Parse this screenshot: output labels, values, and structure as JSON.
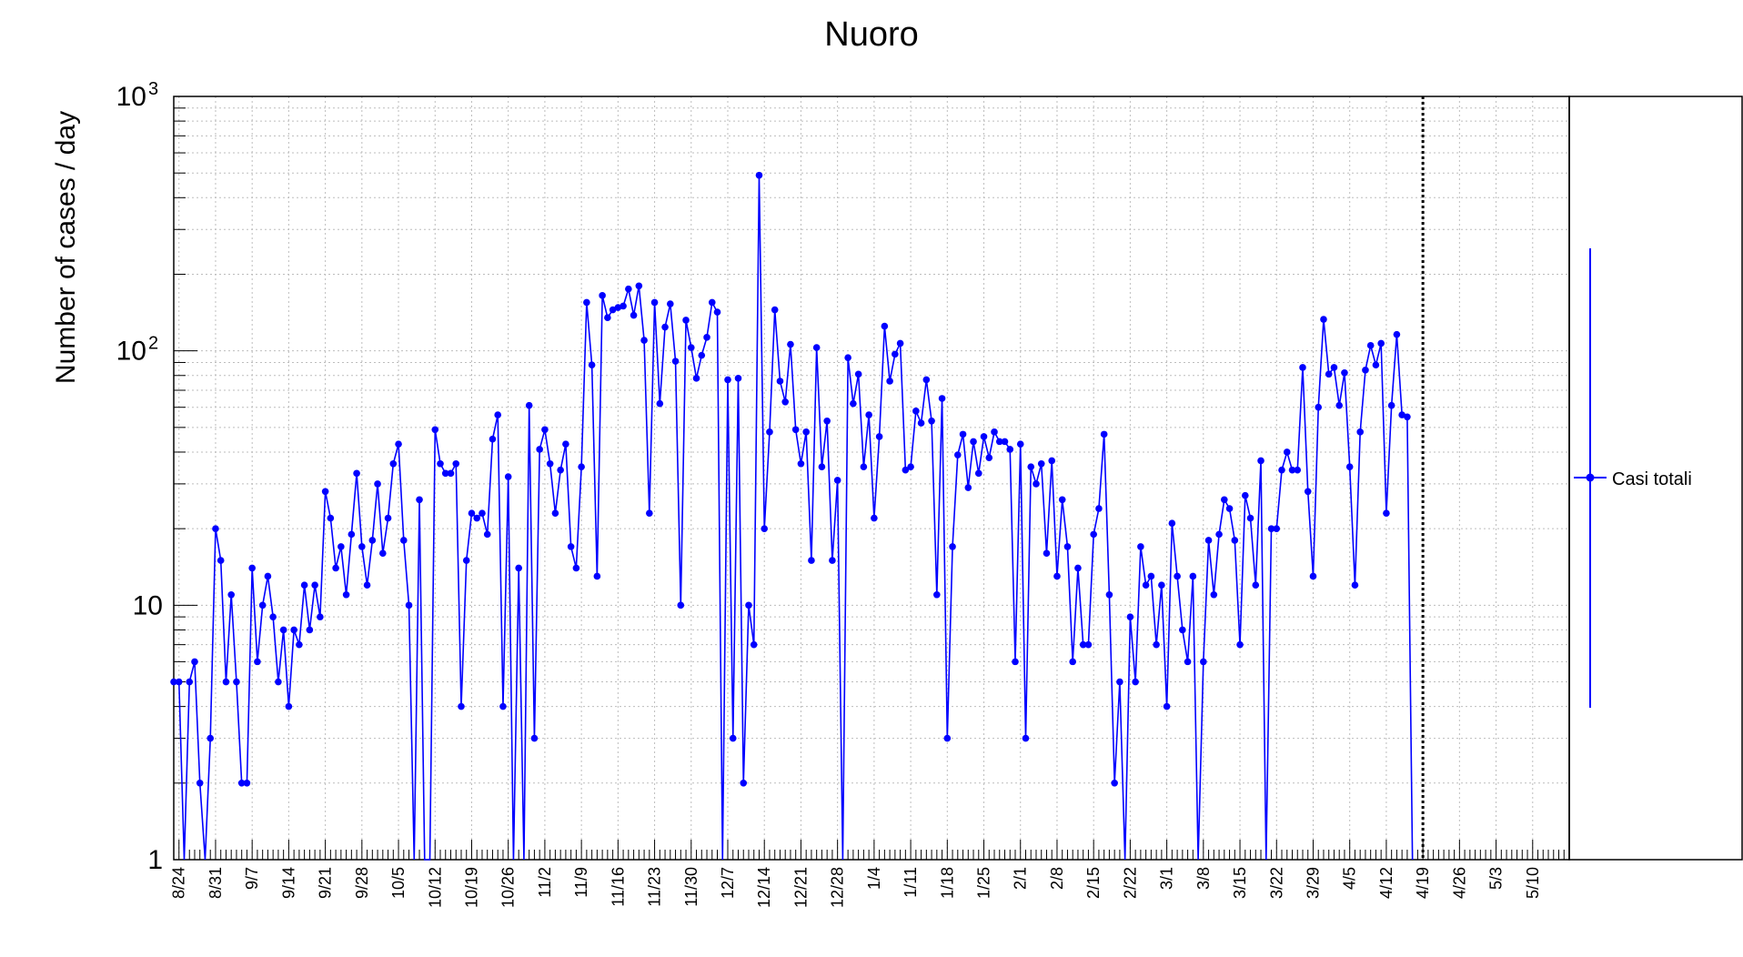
{
  "chart_data": {
    "type": "line",
    "title": "Nuoro",
    "ylabel": "Number of cases / day",
    "xlabel": "",
    "y_scale": "log",
    "ylim": [
      1,
      1000
    ],
    "y_tick_labels": [
      {
        "value": 1,
        "label": "1"
      },
      {
        "value": 10,
        "label": "10"
      },
      {
        "value": 100,
        "label": "10",
        "sup": "2"
      },
      {
        "value": 1000,
        "label": "10",
        "sup": "3"
      }
    ],
    "x_start": "8/23",
    "x_range_days": [
      0,
      267
    ],
    "x_tick_labels": [
      "8/24",
      "8/31",
      "9/7",
      "9/14",
      "9/21",
      "9/28",
      "10/5",
      "10/12",
      "10/19",
      "10/26",
      "11/2",
      "11/9",
      "11/16",
      "11/23",
      "11/30",
      "12/7",
      "12/14",
      "12/21",
      "12/28",
      "1/4",
      "1/11",
      "1/18",
      "1/25",
      "2/1",
      "2/8",
      "2/15",
      "2/22",
      "3/1",
      "3/8",
      "3/15",
      "3/22",
      "3/29",
      "4/5",
      "4/12",
      "4/19",
      "4/26",
      "5/3",
      "5/10"
    ],
    "grid": true,
    "legend_position": "right",
    "vertical_marker_day": 239,
    "series": [
      {
        "name": "Casi totali",
        "color": "#0000ff",
        "values": [
          5,
          5,
          0,
          5,
          6,
          2,
          0,
          3,
          20,
          15,
          5,
          11,
          5,
          2,
          2,
          14,
          6,
          10,
          13,
          9,
          5,
          8,
          4,
          8,
          7,
          12,
          8,
          12,
          9,
          28,
          22,
          14,
          17,
          11,
          19,
          33,
          17,
          12,
          18,
          30,
          16,
          22,
          36,
          43,
          18,
          10,
          0,
          26,
          0,
          0,
          49,
          36,
          33,
          33,
          36,
          4,
          15,
          23,
          22,
          23,
          19,
          45,
          56,
          4,
          32,
          0,
          14,
          0,
          61,
          3,
          41,
          49,
          36,
          23,
          34,
          43,
          17,
          14,
          35,
          155,
          88,
          13,
          165,
          135,
          145,
          148,
          150,
          175,
          138,
          180,
          110,
          23,
          155,
          62,
          124,
          153,
          91,
          10,
          132,
          103,
          78,
          96,
          113,
          155,
          142,
          0,
          77,
          3,
          78,
          2,
          10,
          7,
          490,
          20,
          48,
          145,
          76,
          63,
          106,
          49,
          36,
          48,
          15,
          103,
          35,
          53,
          15,
          31,
          0,
          94,
          62,
          81,
          35,
          56,
          22,
          46,
          125,
          76,
          97,
          107,
          34,
          35,
          58,
          52,
          77,
          53,
          11,
          65,
          3,
          17,
          39,
          47,
          29,
          44,
          33,
          46,
          38,
          48,
          44,
          44,
          41,
          6,
          43,
          3,
          35,
          30,
          36,
          16,
          37,
          13,
          26,
          17,
          6,
          14,
          7,
          7,
          19,
          24,
          47,
          11,
          2,
          5,
          0,
          9,
          5,
          17,
          12,
          13,
          7,
          12,
          4,
          21,
          13,
          8,
          6,
          13,
          0,
          6,
          18,
          11,
          19,
          26,
          24,
          18,
          7,
          27,
          22,
          12,
          37,
          0,
          20,
          20,
          34,
          40,
          34,
          34,
          86,
          28,
          13,
          60,
          133,
          81,
          86,
          61,
          82,
          35,
          12,
          48,
          84,
          105,
          88,
          107,
          23,
          61,
          116,
          56,
          55,
          0
        ]
      }
    ]
  }
}
